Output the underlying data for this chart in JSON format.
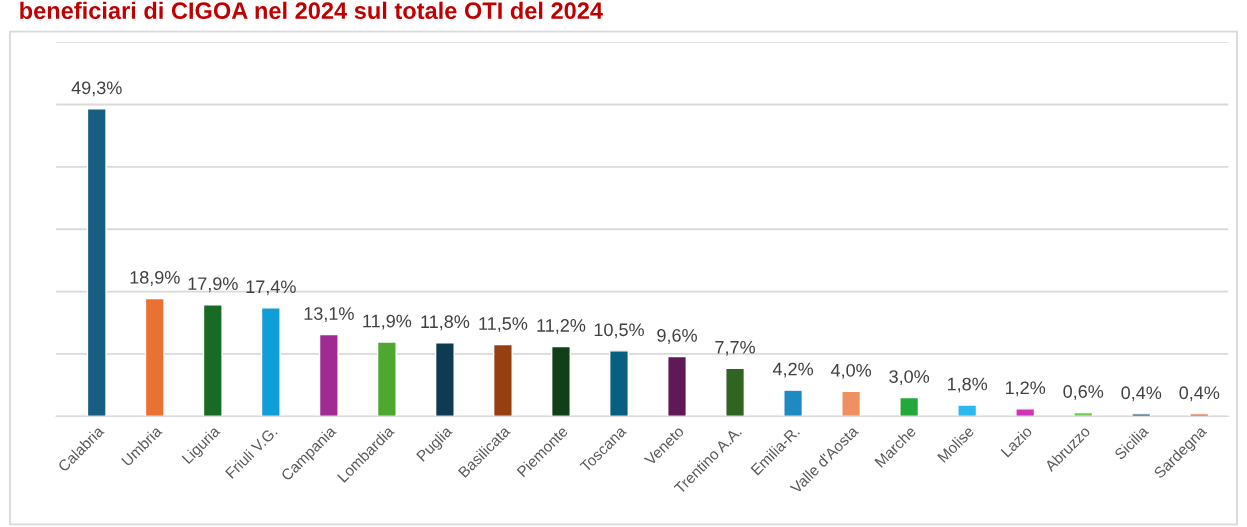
{
  "chart_data": {
    "type": "bar",
    "title": "beneficiari di CIGOA nel 2024 sul totale OTI del 2024",
    "categories": [
      "Calabria",
      "Umbria",
      "Liguria",
      "Friuli V.G.",
      "Campania",
      "Lombardia",
      "Puglia",
      "Basilicata",
      "Piemonte",
      "Toscana",
      "Veneto",
      "Trentino A.A.",
      "Emilia-R.",
      "Valle d'Aosta",
      "Marche",
      "Molise",
      "Lazio",
      "Abruzzo",
      "Sicilia",
      "Sardegna"
    ],
    "values": [
      49.3,
      18.9,
      17.9,
      17.4,
      13.1,
      11.9,
      11.8,
      11.5,
      11.2,
      10.5,
      9.6,
      7.7,
      4.2,
      4.0,
      3.0,
      1.8,
      1.2,
      0.6,
      0.4,
      0.4
    ],
    "colors": [
      "#175e82",
      "#e97132",
      "#196b24",
      "#0f9ed5",
      "#a02b93",
      "#4ea72e",
      "#0e3a52",
      "#964011",
      "#113f18",
      "#095f80",
      "#5f1a55",
      "#2f6421",
      "#1f8ac2",
      "#ef9061",
      "#24a83a",
      "#2ab8ee",
      "#cc35b8",
      "#6fce4a",
      "#0e4d70",
      "#d6591e"
    ],
    "value_labels": [
      "49,3%",
      "18,9%",
      "17,9%",
      "17,4%",
      "13,1%",
      "11,9%",
      "11,8%",
      "11,5%",
      "11,2%",
      "10,5%",
      "9,6%",
      "7,7%",
      "4,2%",
      "4,0%",
      "3,0%",
      "1,8%",
      "1,2%",
      "0,6%",
      "0,4%",
      "0,4%"
    ],
    "ylim": [
      0,
      60
    ],
    "yticks": [
      {
        "value": 0,
        "label": null
      },
      {
        "value": 10,
        "label": null
      },
      {
        "value": 20,
        "label": null
      },
      {
        "value": 30,
        "label": null
      },
      {
        "value": 40,
        "label": null
      },
      {
        "value": 50,
        "label": null
      },
      {
        "value": 60,
        "label": null
      }
    ],
    "grid": "y",
    "legend": false
  }
}
